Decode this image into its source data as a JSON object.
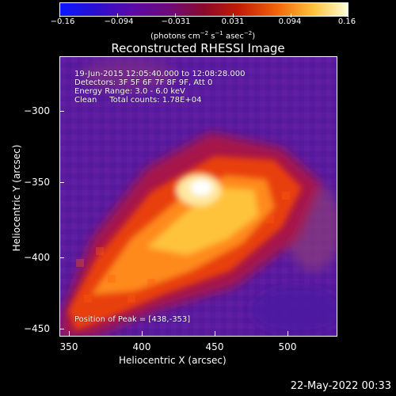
{
  "colorbar": {
    "ticks": [
      "−0.16",
      "−0.094",
      "−0.031",
      "0.031",
      "0.094",
      "0.16"
    ],
    "unit_prefix": "(photons cm",
    "unit_sup1": "−2",
    "unit_mid": " s",
    "unit_sup2": "−1",
    "unit_mid2": " asec",
    "unit_sup3": "−2",
    "unit_suffix": ")"
  },
  "title": "Reconstructed RHESSI Image",
  "info": {
    "line1": "19-Jun-2015 12:05:40.000 to 12:08:28.000",
    "line2": "Detectors: 3F 5F 6F 7F 8F 9F, Att 0",
    "line3": "Energy Range: 3.0 - 6.0 keV",
    "line4": "Clean     Total counts: 1.78E+04",
    "peak": "Position of Peak = [438,-353]"
  },
  "axes": {
    "xlabel": "Heliocentric X (arcsec)",
    "ylabel": "Heliocentric Y (arcsec)",
    "xticks": [
      "350",
      "400",
      "450",
      "500"
    ],
    "yticks": [
      "−300",
      "−350",
      "−400",
      "−450"
    ]
  },
  "footer": {
    "timestamp": "22-May-2022 00:33"
  }
}
